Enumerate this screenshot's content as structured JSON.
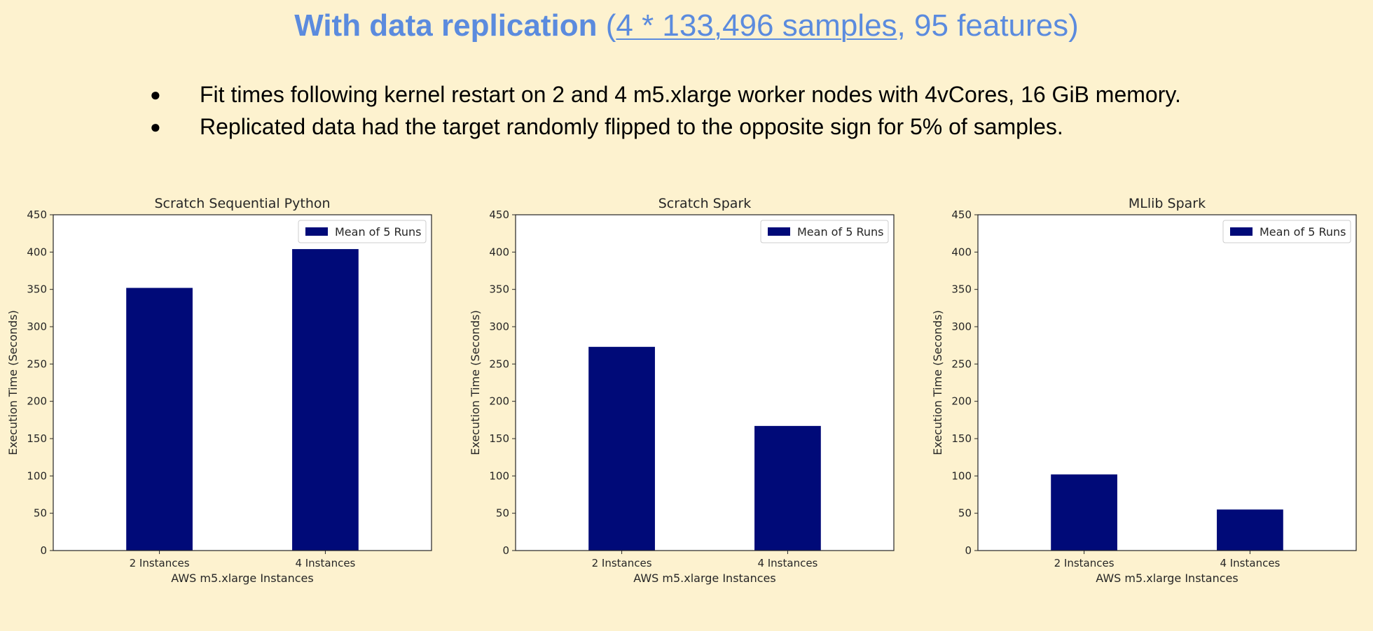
{
  "slide": {
    "title_bold": "With data replication",
    "title_paren_open": "(",
    "title_link": "4 * 133,496 samples",
    "title_rest": ", 95 features)",
    "bullets": [
      "Fit times following kernel restart on 2 and 4 m5.xlarge worker nodes with 4vCores, 16 GiB memory.",
      "Replicated data had the target randomly flipped to the opposite sign for 5% of samples."
    ]
  },
  "chart_data": [
    {
      "type": "bar",
      "title": "Scratch Sequential Python",
      "categories": [
        "2 Instances",
        "4 Instances"
      ],
      "series": [
        {
          "name": "Mean of 5 Runs",
          "values": [
            352,
            404
          ]
        }
      ],
      "xlabel": "AWS m5.xlarge Instances",
      "ylabel": "Execution Time (Seconds)",
      "ylim": [
        0,
        450
      ],
      "yticks": [
        0,
        50,
        100,
        150,
        200,
        250,
        300,
        350,
        400,
        450
      ],
      "legend": "top-right",
      "grid": false,
      "bar_color": "#000a78"
    },
    {
      "type": "bar",
      "title": "Scratch Spark",
      "categories": [
        "2 Instances",
        "4 Instances"
      ],
      "series": [
        {
          "name": "Mean of 5 Runs",
          "values": [
            273,
            167
          ]
        }
      ],
      "xlabel": "AWS m5.xlarge Instances",
      "ylabel": "Execution Time (Seconds)",
      "ylim": [
        0,
        450
      ],
      "yticks": [
        0,
        50,
        100,
        150,
        200,
        250,
        300,
        350,
        400,
        450
      ],
      "legend": "top-right",
      "grid": false,
      "bar_color": "#000a78"
    },
    {
      "type": "bar",
      "title": "MLlib Spark",
      "categories": [
        "2 Instances",
        "4 Instances"
      ],
      "series": [
        {
          "name": "Mean of 5 Runs",
          "values": [
            102,
            55
          ]
        }
      ],
      "xlabel": "AWS m5.xlarge Instances",
      "ylabel": "Execution Time (Seconds)",
      "ylim": [
        0,
        450
      ],
      "yticks": [
        0,
        50,
        100,
        150,
        200,
        250,
        300,
        350,
        400,
        450
      ],
      "legend": "top-right",
      "grid": false,
      "bar_color": "#000a78"
    }
  ]
}
